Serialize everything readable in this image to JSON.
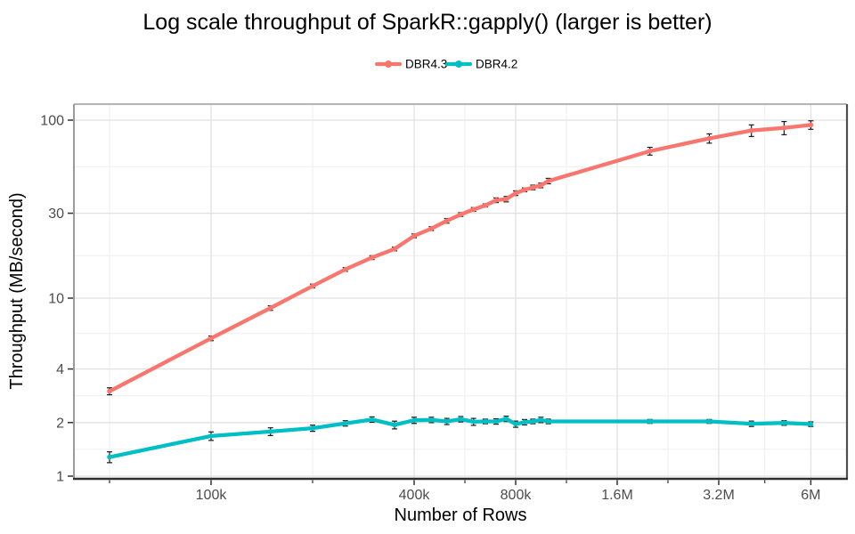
{
  "chart_data": {
    "type": "line",
    "title": "Log scale throughput of SparkR::gapply() (larger is better)",
    "xlabel": "Number of Rows",
    "ylabel": "Throughput (MB/second)",
    "x_scale": "log10",
    "y_scale": "log10",
    "grid": true,
    "error_bars": true,
    "legend_position": "top-center",
    "xlim": [
      39000,
      7700000
    ],
    "ylim": [
      0.97,
      122
    ],
    "x_ticks": [
      {
        "value": 100000,
        "label": "100k"
      },
      {
        "value": 400000,
        "label": "400k"
      },
      {
        "value": 800000,
        "label": "800k"
      },
      {
        "value": 1600000,
        "label": "1.6M"
      },
      {
        "value": 3200000,
        "label": "3.2M"
      },
      {
        "value": 6000000,
        "label": "6M"
      }
    ],
    "y_ticks": [
      {
        "value": 100,
        "label": "100"
      },
      {
        "value": 30,
        "label": "30"
      },
      {
        "value": 10,
        "label": "10"
      },
      {
        "value": 4,
        "label": "4"
      },
      {
        "value": 2,
        "label": "2"
      },
      {
        "value": 1,
        "label": "1"
      }
    ],
    "x": [
      50000,
      100000,
      150000,
      200000,
      250000,
      300000,
      350000,
      400000,
      450000,
      500000,
      550000,
      600000,
      650000,
      700000,
      750000,
      800000,
      850000,
      900000,
      950000,
      1000000,
      2000000,
      3000000,
      4000000,
      5000000,
      6000000
    ],
    "series": [
      {
        "name": "DBR4.3",
        "color": "#F8766D",
        "values": [
          3.0,
          5.95,
          8.8,
          11.7,
          14.5,
          16.9,
          18.9,
          22.4,
          24.6,
          27.2,
          29.5,
          31.5,
          33.2,
          35.5,
          36.0,
          38.9,
          40.6,
          41.9,
          43.0,
          45.5,
          67.0,
          79.0,
          87.5,
          90.5,
          94.0
        ],
        "err_frac": [
          0.045,
          0.03,
          0.03,
          0.025,
          0.025,
          0.025,
          0.025,
          0.025,
          0.025,
          0.03,
          0.025,
          0.025,
          0.02,
          0.03,
          0.035,
          0.03,
          0.025,
          0.03,
          0.03,
          0.035,
          0.05,
          0.06,
          0.075,
          0.085,
          0.055
        ]
      },
      {
        "name": "DBR4.2",
        "color": "#00BFC4",
        "values": [
          1.28,
          1.68,
          1.78,
          1.86,
          1.98,
          2.08,
          1.94,
          2.06,
          2.07,
          2.03,
          2.09,
          2.02,
          2.03,
          2.03,
          2.1,
          1.96,
          2.01,
          2.03,
          2.07,
          2.03,
          2.03,
          2.03,
          1.97,
          1.99,
          1.96
        ],
        "err_frac": [
          0.07,
          0.055,
          0.05,
          0.04,
          0.035,
          0.035,
          0.05,
          0.04,
          0.035,
          0.04,
          0.035,
          0.045,
          0.03,
          0.035,
          0.035,
          0.04,
          0.035,
          0.03,
          0.035,
          0.03,
          0.025,
          0.025,
          0.035,
          0.03,
          0.03
        ]
      }
    ],
    "colors": {
      "tick_label": "#4D4D4D",
      "grid_major": "#E2E2E2",
      "grid_minor": "#EFEFEF",
      "axis_line": "#2E2E2E",
      "panel_border": "#8F8F8F",
      "error_bar": "#1A1A1A"
    }
  }
}
